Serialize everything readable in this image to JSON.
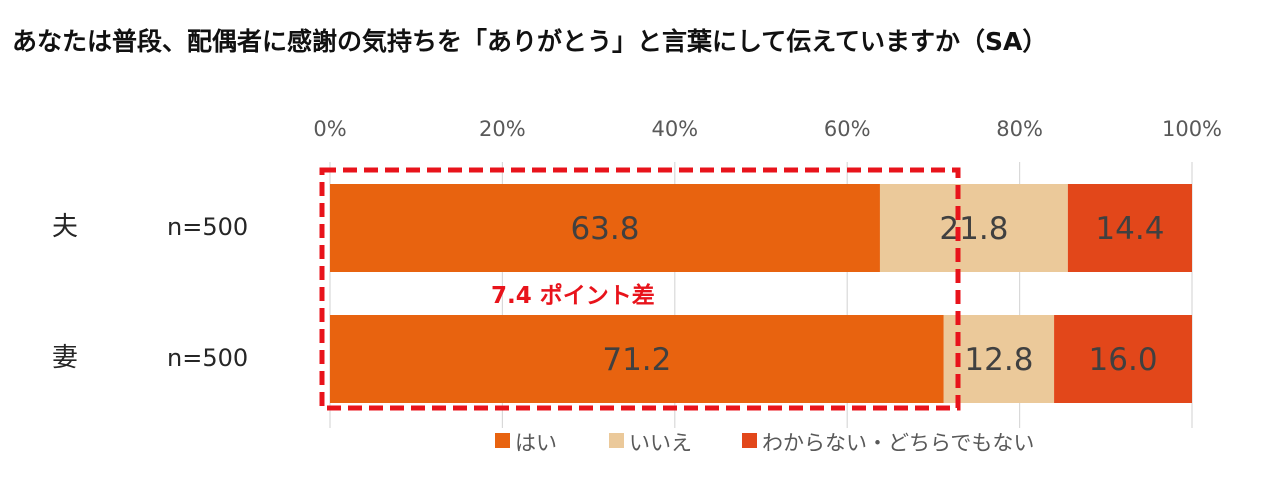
{
  "title": "あなたは普段、配偶者に感謝の気持ちを「ありがとう」と言葉にして伝えていますか（SA）",
  "chart_data": {
    "type": "bar",
    "orientation": "horizontal",
    "stacked": true,
    "categories": [
      {
        "label": "夫",
        "n": "n=500"
      },
      {
        "label": "妻",
        "n": "n=500"
      }
    ],
    "series": [
      {
        "name": "はい",
        "color": "#E8630F",
        "values": [
          63.8,
          71.2
        ],
        "labels": [
          "63.8",
          "71.2"
        ]
      },
      {
        "name": "いいえ",
        "color": "#EBC99A",
        "values": [
          21.8,
          12.8
        ],
        "labels": [
          "21.8",
          "12.8"
        ]
      },
      {
        "name": "わからない・どちらでもない",
        "color": "#E2471A",
        "values": [
          14.4,
          16.0
        ],
        "labels": [
          "14.4",
          "16.0"
        ]
      }
    ],
    "xlim": [
      0,
      100
    ],
    "xticks": [
      "0%",
      "20%",
      "40%",
      "60%",
      "80%",
      "100%"
    ],
    "grid": true,
    "legend_position": "bottom",
    "annotation": {
      "text": "7.4 ポイント差",
      "color": "#E8131B"
    }
  }
}
